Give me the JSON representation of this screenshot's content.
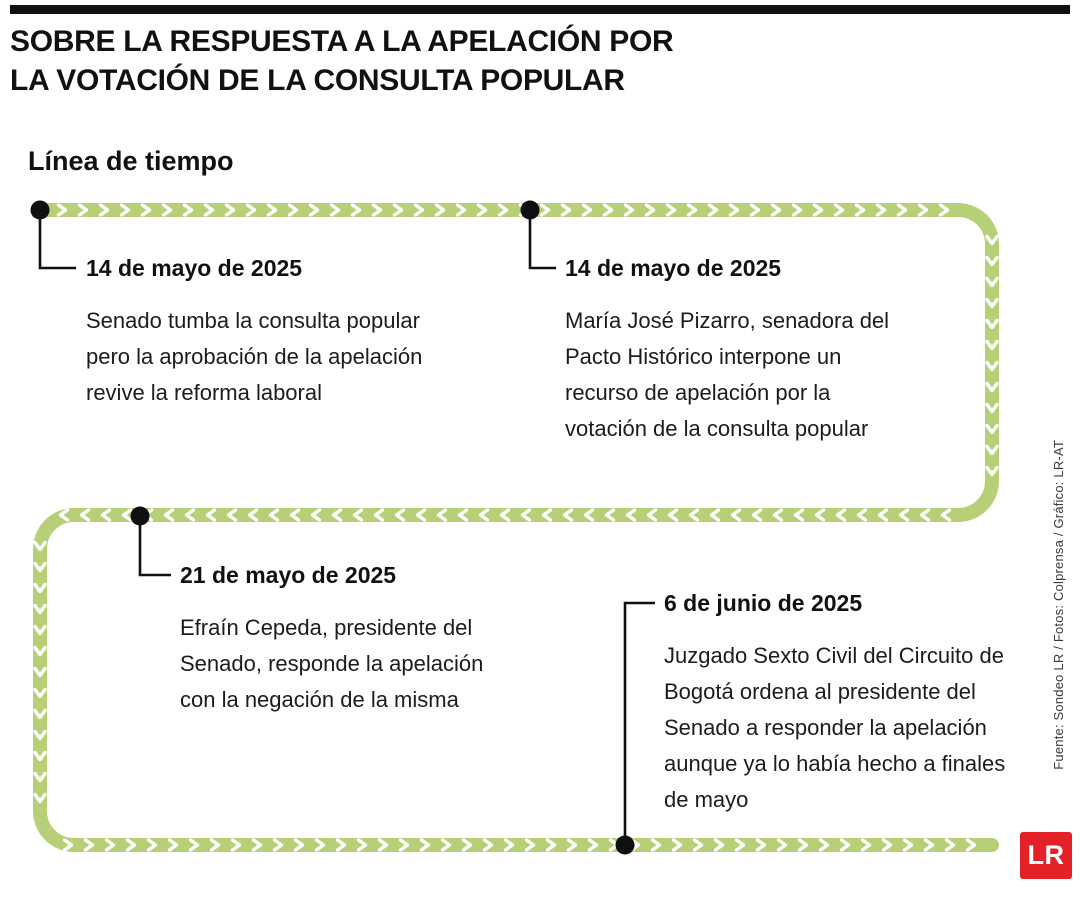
{
  "title": {
    "line1": "SOBRE LA RESPUESTA A LA APELACIÓN POR",
    "line2": "LA VOTACIÓN DE LA CONSULTA POPULAR"
  },
  "subtitle": "Línea de tiempo",
  "events": [
    {
      "date": "14 de mayo de 2025",
      "text": "Senado tumba la consulta popular pero la aprobación de la apelación revive la reforma laboral"
    },
    {
      "date": "14 de mayo de 2025",
      "text": "María José Pizarro, senadora del Pacto Histórico interpone un recurso de apelación por la votación de la consulta popular"
    },
    {
      "date": "21 de mayo de 2025",
      "text": "Efraín Cepeda, presidente del Senado, responde la apelación con la negación de la misma"
    },
    {
      "date": "6 de junio de 2025",
      "text": "Juzgado Sexto Civil del Circuito de Bogotá ordena al presidente del Senado a responder la apelación aunque ya lo había hecho a finales de mayo"
    }
  ],
  "credits": "Fuente: Sondeo LR / Fotos: Colprensa / Gráfico: LR-AT",
  "logo": "LR",
  "colors": {
    "timeline_green": "#b7d077",
    "logo_red": "#e22128",
    "ink": "#111111"
  }
}
